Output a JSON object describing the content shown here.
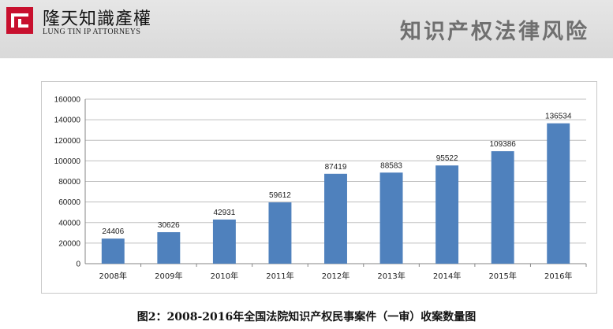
{
  "header": {
    "firm_name_cn": "隆天知識產權",
    "firm_name_en": "LUNG TIN IP ATTORNEYS",
    "page_title": "知识产权法律风险",
    "logo_icon": "lung-tin-logo-icon",
    "logo_color": "#c8102e"
  },
  "caption": "图2：2008-2016年全国法院知识产权民事案件（一审）收案数量图",
  "chart_data": {
    "type": "bar",
    "title": "",
    "xlabel": "",
    "ylabel": "",
    "categories": [
      "2008年",
      "2009年",
      "2010年",
      "2011年",
      "2012年",
      "2013年",
      "2014年",
      "2015年",
      "2016年"
    ],
    "values": [
      24406,
      30626,
      42931,
      59612,
      87419,
      88583,
      95522,
      109386,
      136534
    ],
    "ylim": [
      0,
      160000
    ],
    "yticks": [
      "0",
      "20000",
      "40000",
      "60000",
      "80000",
      "100000",
      "120000",
      "140000",
      "160000"
    ],
    "grid": true,
    "legend": "none",
    "bar_color": "#4f81bd"
  }
}
